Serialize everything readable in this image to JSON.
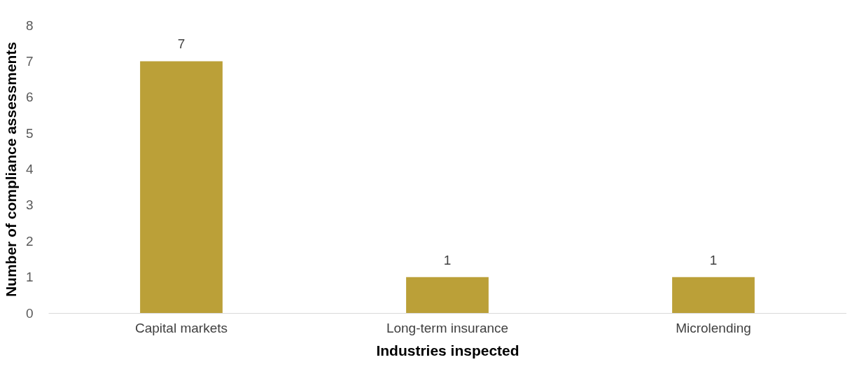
{
  "chart_data": {
    "type": "bar",
    "xlabel": "Industries inspected",
    "ylabel": "Number of compliance assessments",
    "categories": [
      "Capital markets",
      "Long-term insurance",
      "Microlending"
    ],
    "values": [
      7,
      1,
      1
    ],
    "color": "#bba038",
    "ylim": [
      0,
      8
    ],
    "yticks": [
      0,
      1,
      2,
      3,
      4,
      5,
      6,
      7,
      8
    ],
    "grid": false,
    "data_labels": true
  }
}
